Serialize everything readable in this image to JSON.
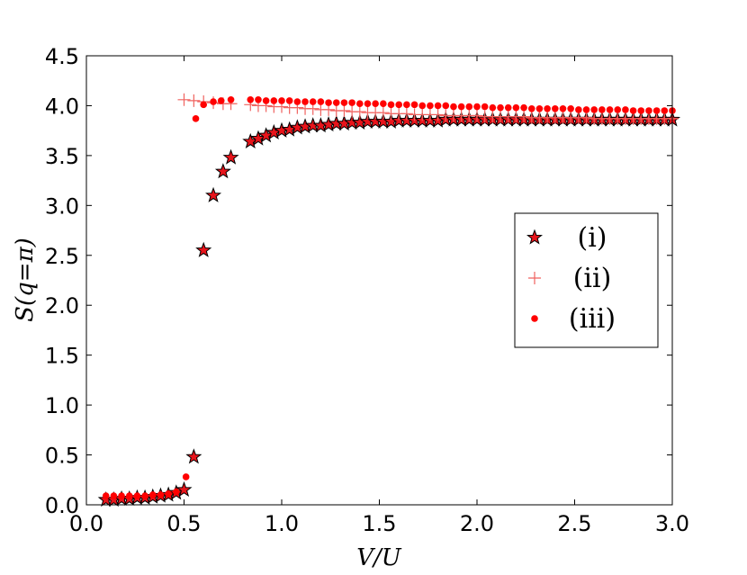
{
  "chart_data": {
    "type": "scatter",
    "title": "",
    "xlabel": "V/U",
    "ylabel": "S(q=π)",
    "xlim": [
      0.0,
      3.0
    ],
    "ylim": [
      0.0,
      4.5
    ],
    "xticks": [
      "0.0",
      "0.5",
      "1.0",
      "1.5",
      "2.0",
      "2.5",
      "3.0"
    ],
    "yticks": [
      "0.0",
      "0.5",
      "1.0",
      "1.5",
      "2.0",
      "2.5",
      "3.0",
      "3.5",
      "4.0",
      "4.5"
    ],
    "grid": false,
    "legend_position": "right",
    "series": [
      {
        "name": "(i)",
        "marker": "star",
        "color": "#e8141b",
        "edge_color": "#000000",
        "points": [
          [
            0.1,
            0.05
          ],
          [
            0.14,
            0.05
          ],
          [
            0.18,
            0.06
          ],
          [
            0.22,
            0.06
          ],
          [
            0.26,
            0.07
          ],
          [
            0.3,
            0.07
          ],
          [
            0.34,
            0.08
          ],
          [
            0.38,
            0.09
          ],
          [
            0.42,
            0.1
          ],
          [
            0.46,
            0.12
          ],
          [
            0.5,
            0.15
          ],
          [
            0.55,
            0.48
          ],
          [
            0.6,
            2.55
          ],
          [
            0.65,
            3.1
          ],
          [
            0.7,
            3.34
          ],
          [
            0.74,
            3.48
          ],
          [
            0.84,
            3.64
          ],
          [
            0.88,
            3.67
          ],
          [
            0.92,
            3.7
          ],
          [
            0.96,
            3.73
          ],
          [
            1.0,
            3.75
          ],
          [
            1.04,
            3.76
          ],
          [
            1.08,
            3.78
          ],
          [
            1.12,
            3.79
          ],
          [
            1.16,
            3.8
          ],
          [
            1.2,
            3.8
          ],
          [
            1.24,
            3.81
          ],
          [
            1.28,
            3.82
          ],
          [
            1.32,
            3.82
          ],
          [
            1.36,
            3.83
          ],
          [
            1.4,
            3.83
          ],
          [
            1.44,
            3.84
          ],
          [
            1.48,
            3.84
          ],
          [
            1.52,
            3.84
          ],
          [
            1.56,
            3.84
          ],
          [
            1.6,
            3.85
          ],
          [
            1.64,
            3.85
          ],
          [
            1.68,
            3.85
          ],
          [
            1.72,
            3.85
          ],
          [
            1.76,
            3.85
          ],
          [
            1.8,
            3.85
          ],
          [
            1.84,
            3.86
          ],
          [
            1.88,
            3.86
          ],
          [
            1.92,
            3.86
          ],
          [
            1.96,
            3.86
          ],
          [
            2.0,
            3.86
          ],
          [
            2.04,
            3.86
          ],
          [
            2.08,
            3.86
          ],
          [
            2.12,
            3.86
          ],
          [
            2.16,
            3.86
          ],
          [
            2.2,
            3.86
          ],
          [
            2.24,
            3.86
          ],
          [
            2.28,
            3.86
          ],
          [
            2.32,
            3.86
          ],
          [
            2.36,
            3.86
          ],
          [
            2.4,
            3.86
          ],
          [
            2.44,
            3.86
          ],
          [
            2.48,
            3.86
          ],
          [
            2.52,
            3.86
          ],
          [
            2.56,
            3.86
          ],
          [
            2.6,
            3.86
          ],
          [
            2.64,
            3.86
          ],
          [
            2.68,
            3.86
          ],
          [
            2.72,
            3.86
          ],
          [
            2.76,
            3.86
          ],
          [
            2.8,
            3.86
          ],
          [
            2.84,
            3.86
          ],
          [
            2.88,
            3.86
          ],
          [
            2.92,
            3.86
          ],
          [
            2.96,
            3.86
          ],
          [
            3.0,
            3.86
          ]
        ]
      },
      {
        "name": "(ii)",
        "marker": "plus",
        "color": "#f0625f",
        "points": [
          [
            0.5,
            4.06
          ],
          [
            0.55,
            4.05
          ],
          [
            0.6,
            4.04
          ],
          [
            0.65,
            4.03
          ],
          [
            0.7,
            4.02
          ],
          [
            0.74,
            4.02
          ],
          [
            0.84,
            4.01
          ],
          [
            0.88,
            4.0
          ],
          [
            0.92,
            4.0
          ],
          [
            0.96,
            3.99
          ],
          [
            1.0,
            3.99
          ],
          [
            1.04,
            3.98
          ],
          [
            1.08,
            3.98
          ],
          [
            1.12,
            3.97
          ],
          [
            1.16,
            3.97
          ],
          [
            1.2,
            3.96
          ],
          [
            1.24,
            3.96
          ],
          [
            1.28,
            3.95
          ],
          [
            1.32,
            3.95
          ],
          [
            1.36,
            3.94
          ],
          [
            1.4,
            3.94
          ],
          [
            1.44,
            3.93
          ],
          [
            1.48,
            3.93
          ],
          [
            1.52,
            3.93
          ],
          [
            1.56,
            3.92
          ],
          [
            1.6,
            3.92
          ],
          [
            1.64,
            3.92
          ],
          [
            1.68,
            3.91
          ],
          [
            1.72,
            3.91
          ],
          [
            1.76,
            3.91
          ],
          [
            1.8,
            3.91
          ],
          [
            1.84,
            3.9
          ],
          [
            1.88,
            3.9
          ],
          [
            1.92,
            3.9
          ],
          [
            1.96,
            3.9
          ],
          [
            2.0,
            3.9
          ],
          [
            2.04,
            3.89
          ],
          [
            2.08,
            3.89
          ],
          [
            2.12,
            3.89
          ],
          [
            2.16,
            3.89
          ],
          [
            2.2,
            3.89
          ],
          [
            2.24,
            3.89
          ],
          [
            2.28,
            3.88
          ],
          [
            2.32,
            3.88
          ],
          [
            2.36,
            3.88
          ],
          [
            2.4,
            3.88
          ],
          [
            2.44,
            3.88
          ],
          [
            2.48,
            3.88
          ],
          [
            2.52,
            3.88
          ],
          [
            2.56,
            3.88
          ],
          [
            2.6,
            3.87
          ],
          [
            2.64,
            3.87
          ],
          [
            2.68,
            3.87
          ],
          [
            2.72,
            3.87
          ],
          [
            2.76,
            3.87
          ],
          [
            2.8,
            3.87
          ],
          [
            2.84,
            3.87
          ],
          [
            2.88,
            3.87
          ],
          [
            2.92,
            3.87
          ],
          [
            2.96,
            3.87
          ],
          [
            3.0,
            3.87
          ]
        ]
      },
      {
        "name": "(iii)",
        "marker": "circle",
        "color": "#ff0000",
        "points": [
          [
            0.1,
            0.09
          ],
          [
            0.14,
            0.09
          ],
          [
            0.18,
            0.09
          ],
          [
            0.22,
            0.09
          ],
          [
            0.26,
            0.09
          ],
          [
            0.3,
            0.09
          ],
          [
            0.34,
            0.1
          ],
          [
            0.38,
            0.1
          ],
          [
            0.42,
            0.11
          ],
          [
            0.46,
            0.13
          ],
          [
            0.51,
            0.28
          ],
          [
            0.56,
            3.87
          ],
          [
            0.6,
            4.01
          ],
          [
            0.65,
            4.04
          ],
          [
            0.69,
            4.05
          ],
          [
            0.74,
            4.06
          ],
          [
            0.84,
            4.06
          ],
          [
            0.88,
            4.06
          ],
          [
            0.92,
            4.05
          ],
          [
            0.96,
            4.05
          ],
          [
            1.0,
            4.05
          ],
          [
            1.04,
            4.05
          ],
          [
            1.08,
            4.04
          ],
          [
            1.12,
            4.04
          ],
          [
            1.16,
            4.04
          ],
          [
            1.2,
            4.04
          ],
          [
            1.24,
            4.03
          ],
          [
            1.28,
            4.03
          ],
          [
            1.32,
            4.03
          ],
          [
            1.36,
            4.03
          ],
          [
            1.4,
            4.02
          ],
          [
            1.44,
            4.02
          ],
          [
            1.48,
            4.02
          ],
          [
            1.52,
            4.02
          ],
          [
            1.56,
            4.01
          ],
          [
            1.6,
            4.01
          ],
          [
            1.64,
            4.01
          ],
          [
            1.68,
            4.01
          ],
          [
            1.72,
            4.0
          ],
          [
            1.76,
            4.0
          ],
          [
            1.8,
            4.0
          ],
          [
            1.84,
            4.0
          ],
          [
            1.88,
            3.99
          ],
          [
            1.92,
            3.99
          ],
          [
            1.96,
            3.99
          ],
          [
            2.0,
            3.99
          ],
          [
            2.04,
            3.99
          ],
          [
            2.08,
            3.98
          ],
          [
            2.12,
            3.98
          ],
          [
            2.16,
            3.98
          ],
          [
            2.2,
            3.98
          ],
          [
            2.24,
            3.98
          ],
          [
            2.28,
            3.97
          ],
          [
            2.32,
            3.97
          ],
          [
            2.36,
            3.97
          ],
          [
            2.4,
            3.97
          ],
          [
            2.44,
            3.97
          ],
          [
            2.48,
            3.97
          ],
          [
            2.52,
            3.96
          ],
          [
            2.56,
            3.96
          ],
          [
            2.6,
            3.96
          ],
          [
            2.64,
            3.96
          ],
          [
            2.68,
            3.96
          ],
          [
            2.72,
            3.96
          ],
          [
            2.76,
            3.96
          ],
          [
            2.8,
            3.95
          ],
          [
            2.84,
            3.95
          ],
          [
            2.88,
            3.95
          ],
          [
            2.92,
            3.95
          ],
          [
            2.96,
            3.95
          ],
          [
            3.0,
            3.95
          ]
        ]
      }
    ]
  }
}
